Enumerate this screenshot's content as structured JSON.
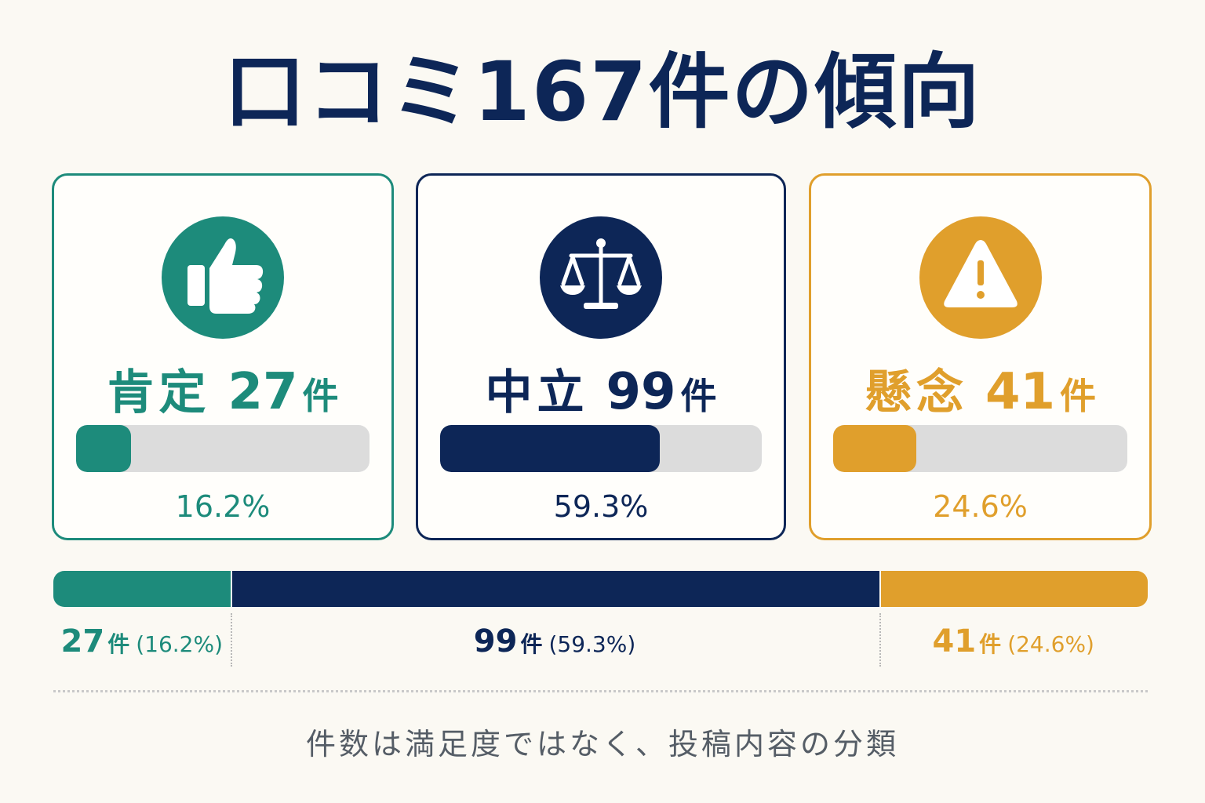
{
  "title": "口コミ167件の傾向",
  "cards": [
    {
      "label": "肯定",
      "count": "27",
      "unit": "件",
      "percent_text": "16.2%",
      "share": 0.162,
      "color": "#1d8b7b",
      "icon": "thumbs-up-icon"
    },
    {
      "label": "中立",
      "count": "99",
      "unit": "件",
      "percent_text": "59.3%",
      "share": 0.593,
      "color": "#0d2657",
      "icon": "scale-icon"
    },
    {
      "label": "懸念",
      "count": "41",
      "unit": "件",
      "percent_text": "24.6%",
      "share": 0.246,
      "color": "#e09f2c",
      "icon": "warning-icon"
    }
  ],
  "breakdown": [
    {
      "count": "27",
      "unit": "件",
      "percent_text": "(16.2%)"
    },
    {
      "count": "99",
      "unit": "件",
      "percent_text": "(59.3%)"
    },
    {
      "count": "41",
      "unit": "件",
      "percent_text": "(24.6%)"
    }
  ],
  "footnote": "件数は満足度ではなく、投稿内容の分類",
  "chart_data": {
    "type": "bar",
    "title": "口コミ167件の傾向",
    "total": 167,
    "categories": [
      "肯定",
      "中立",
      "懸念"
    ],
    "values": [
      27,
      99,
      41
    ],
    "percentages": [
      16.2,
      59.3,
      24.6
    ],
    "colors": [
      "#1d8b7b",
      "#0d2657",
      "#e09f2c"
    ]
  }
}
